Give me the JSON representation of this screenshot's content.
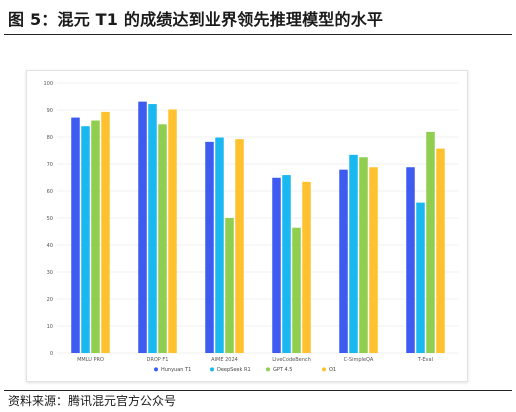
{
  "figure": {
    "title": "图 5：混元 T1 的成绩达到业界领先推理模型的水平",
    "source": "资料来源：腾讯混元官方公众号"
  },
  "chart_data": {
    "type": "bar",
    "categories": [
      "MMLU PRO",
      "DROP F1",
      "AIME 2024",
      "LiveCodeBench",
      "C-SimpleQA",
      "T-Eval"
    ],
    "series": [
      {
        "name": "Hunyuan T1",
        "color": "#3d5af1",
        "values": [
          87.2,
          93.1,
          78.2,
          64.9,
          67.9,
          68.8
        ]
      },
      {
        "name": "DeepSeek R1",
        "color": "#1ab8f0",
        "values": [
          84.0,
          92.2,
          79.8,
          65.9,
          73.4,
          55.7
        ]
      },
      {
        "name": "GPT 4.5",
        "color": "#8fce4e",
        "values": [
          86.1,
          84.7,
          50.0,
          46.4,
          72.5,
          81.9
        ]
      },
      {
        "name": "O1",
        "color": "#ffc12e",
        "values": [
          89.3,
          90.2,
          79.2,
          63.4,
          68.8,
          75.7
        ]
      }
    ],
    "y_ticks": [
      "0",
      "10",
      "20",
      "30",
      "40",
      "50",
      "60",
      "70",
      "80",
      "90",
      "100"
    ],
    "ylim": [
      0,
      100
    ],
    "grid": true,
    "legend_position": "bottom"
  }
}
